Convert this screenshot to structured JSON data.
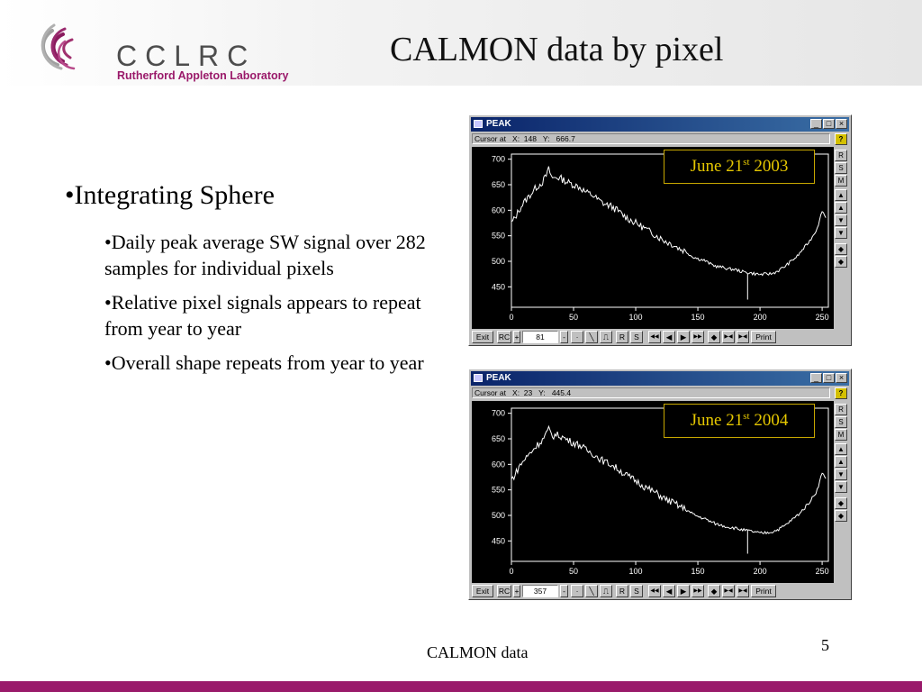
{
  "header": {
    "logo_text": "CCLRC",
    "logo_subtitle": "Rutherford Appleton Laboratory",
    "title": "CALMON data by pixel"
  },
  "bullets": {
    "main": "•Integrating Sphere",
    "sub": [
      "•Daily peak average SW signal over 282 samples for individual pixels",
      "•Relative pixel signals appears to repeat from year to year",
      "•Overall shape repeats from year to year"
    ]
  },
  "windows": [
    {
      "title": "PEAK",
      "status": "Cursor at   X:  148   Y:   666.7",
      "date_main": "June 21",
      "date_sup": "st",
      "date_year": " 2003",
      "field_value": "81"
    },
    {
      "title": "PEAK",
      "status": "Cursor at   X:  23   Y:   445.4",
      "date_main": "June 21",
      "date_sup": "st",
      "date_year": " 2004",
      "field_value": "357"
    }
  ],
  "window_controls": {
    "minimize": "_",
    "maximize": "□",
    "close": "×"
  },
  "side_buttons": {
    "help": "?",
    "r": "R",
    "s": "S",
    "m": "M"
  },
  "side_icons": [
    "help-icon",
    "r-button",
    "s-button",
    "m-button",
    "top-arrow-icon",
    "up-arrow-icon",
    "down-arrow-icon",
    "bottom-arrow-icon",
    "expand-icon",
    "collapse-icon"
  ],
  "toolbar": {
    "exit": "Exit",
    "rc": "RC",
    "plus": "+",
    "minus": "-",
    "dot": "·",
    "r": "R",
    "s": "S",
    "print": "Print"
  },
  "chart_data": {
    "type": "line",
    "x_ticks": [
      0,
      50,
      100,
      150,
      200,
      250
    ],
    "y_ticks": [
      450,
      500,
      550,
      600,
      650,
      700
    ],
    "xlim": [
      0,
      255
    ],
    "ylim": [
      410,
      710
    ],
    "grid": false,
    "series": [
      {
        "x": [
          0,
          3,
          6,
          10,
          15,
          20,
          25,
          28,
          30,
          33,
          36,
          40,
          45,
          50,
          55,
          60,
          65,
          70,
          75,
          80,
          85,
          90,
          95,
          100,
          105,
          110,
          115,
          120,
          125,
          130,
          135,
          140,
          145,
          150,
          155,
          160,
          165,
          170,
          175,
          180,
          185,
          190,
          195,
          200,
          205,
          210,
          215,
          220,
          225,
          230,
          235,
          240,
          245,
          248,
          250,
          253
        ],
        "y": [
          575,
          585,
          600,
          615,
          630,
          645,
          655,
          668,
          680,
          662,
          665,
          662,
          655,
          650,
          645,
          635,
          630,
          620,
          612,
          608,
          600,
          590,
          582,
          575,
          568,
          560,
          553,
          545,
          538,
          533,
          525,
          520,
          510,
          505,
          502,
          495,
          490,
          488,
          485,
          484,
          480,
          478,
          476,
          474,
          475,
          476,
          482,
          490,
          500,
          510,
          525,
          540,
          560,
          580,
          600,
          585
        ]
      },
      {
        "x": [
          0,
          3,
          6,
          10,
          15,
          20,
          25,
          28,
          30,
          33,
          36,
          40,
          45,
          50,
          55,
          60,
          65,
          70,
          75,
          80,
          85,
          90,
          95,
          100,
          105,
          110,
          115,
          120,
          125,
          130,
          135,
          140,
          145,
          150,
          155,
          160,
          165,
          170,
          175,
          180,
          185,
          190,
          195,
          200,
          205,
          210,
          215,
          220,
          225,
          230,
          235,
          240,
          245,
          248,
          250,
          253
        ],
        "y": [
          570,
          580,
          595,
          608,
          622,
          636,
          648,
          660,
          668,
          655,
          658,
          655,
          648,
          642,
          638,
          628,
          622,
          613,
          605,
          600,
          592,
          583,
          575,
          568,
          560,
          552,
          546,
          538,
          530,
          525,
          518,
          512,
          504,
          498,
          494,
          488,
          483,
          480,
          477,
          475,
          472,
          470,
          468,
          465,
          466,
          468,
          473,
          480,
          490,
          500,
          512,
          527,
          545,
          565,
          585,
          570
        ]
      }
    ]
  }
}
